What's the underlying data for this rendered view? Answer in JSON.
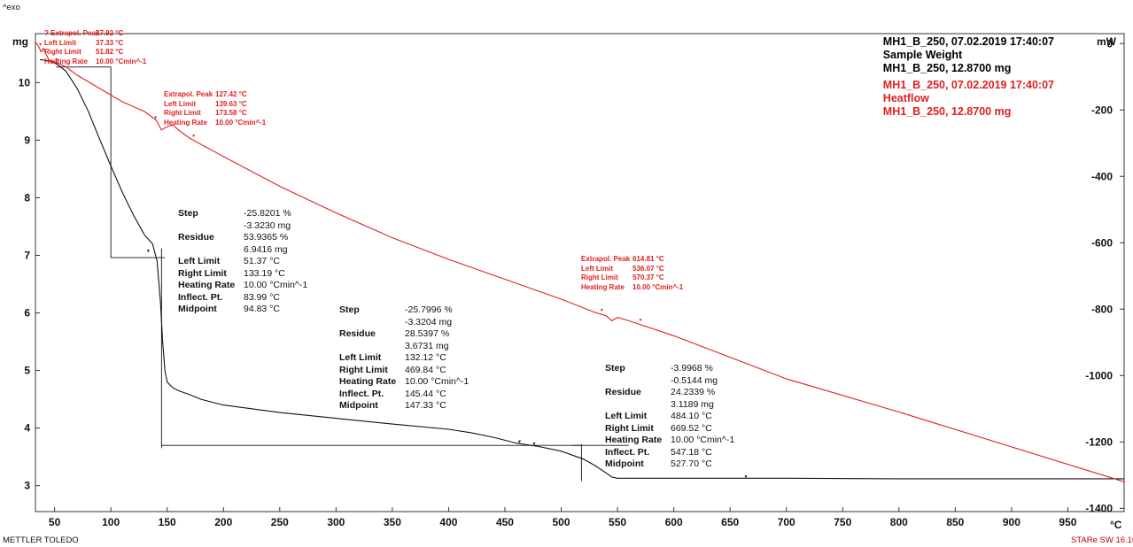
{
  "header": {
    "exo_label": "^exo"
  },
  "footer": {
    "brand": "METTLER TOLEDO",
    "software": "STARe SW 16.10"
  },
  "legend": {
    "black": [
      "MH1_B_250, 07.02.2019 17:40:07",
      "Sample Weight",
      "MH1_B_250, 12.8700 mg"
    ],
    "red": [
      "MH1_B_250, 07.02.2019 17:40:07",
      "Heatflow",
      "MH1_B_250, 12.8700 mg"
    ]
  },
  "colors": {
    "weight": "#111111",
    "heatflow": "#e02020",
    "frame": "#333333"
  },
  "peak_annotations": [
    {
      "rows": [
        [
          "? Extrapol. Peak",
          "37.92 °C"
        ],
        [
          "Left Limit",
          "37.33 °C"
        ],
        [
          "Right Limit",
          "51.82 °C"
        ],
        [
          "Heating Rate",
          "10.00 °Cmin^-1"
        ]
      ]
    },
    {
      "rows": [
        [
          "Extrapol. Peak",
          "127.42 °C"
        ],
        [
          "Left Limit",
          "139.63 °C"
        ],
        [
          "Right Limit",
          "173.58 °C"
        ],
        [
          "Heating Rate",
          "10.00 °Cmin^-1"
        ]
      ]
    },
    {
      "rows": [
        [
          "Extrapol. Peak",
          "614.81 °C"
        ],
        [
          "Left Limit",
          "536.07 °C"
        ],
        [
          "Right Limit",
          "570.37 °C"
        ],
        [
          "Heating Rate",
          "10.00 °Cmin^-1"
        ]
      ]
    }
  ],
  "step_annotations": [
    {
      "rows": [
        [
          "Step",
          "-25.8201 %"
        ],
        [
          "",
          "-3.3230 mg"
        ],
        [
          "Residue",
          "53.9365 %"
        ],
        [
          "",
          "6.9416 mg"
        ],
        [
          "Left Limit",
          "51.37 °C"
        ],
        [
          "Right Limit",
          "133.19 °C"
        ],
        [
          "Heating Rate",
          "10.00 °Cmin^-1"
        ],
        [
          "Inflect. Pt.",
          "83.99 °C"
        ],
        [
          "Midpoint",
          "94.83 °C"
        ]
      ]
    },
    {
      "rows": [
        [
          "Step",
          "-25.7996 %"
        ],
        [
          "",
          "-3.3204 mg"
        ],
        [
          "Residue",
          "28.5397 %"
        ],
        [
          "",
          "3.6731 mg"
        ],
        [
          "Left Limit",
          "132.12 °C"
        ],
        [
          "Right Limit",
          "469.84 °C"
        ],
        [
          "Heating Rate",
          "10.00 °Cmin^-1"
        ],
        [
          "Inflect. Pt.",
          "145.44 °C"
        ],
        [
          "Midpoint",
          "147.33 °C"
        ]
      ]
    },
    {
      "rows": [
        [
          "Step",
          "-3.9968 %"
        ],
        [
          "",
          "-0.5144 mg"
        ],
        [
          "Residue",
          "24.2339 %"
        ],
        [
          "",
          "3.1189 mg"
        ],
        [
          "Left Limit",
          "484.10 °C"
        ],
        [
          "Right Limit",
          "669.52 °C"
        ],
        [
          "Heating Rate",
          "10.00 °Cmin^-1"
        ],
        [
          "Inflect. Pt.",
          "547.18 °C"
        ],
        [
          "Midpoint",
          "527.70 °C"
        ]
      ]
    }
  ],
  "chart_data": {
    "type": "line",
    "x_unit": "°C",
    "y_left_unit": "mg",
    "y_right_unit": "mW",
    "x_ticks": [
      50,
      100,
      150,
      200,
      250,
      300,
      350,
      400,
      450,
      500,
      550,
      600,
      650,
      700,
      750,
      800,
      850,
      900,
      950
    ],
    "y_left_ticks": [
      3,
      4,
      5,
      6,
      7,
      8,
      9,
      10
    ],
    "y_right_ticks": [
      0,
      -200,
      -400,
      -600,
      -800,
      -1000,
      -1200,
      -1400
    ],
    "xlim": [
      33,
      1000
    ],
    "ylim_left": [
      2.55,
      10.85
    ],
    "ylim_right": [
      -1410,
      30
    ],
    "grid": false,
    "series": [
      {
        "name": "Sample Weight",
        "axis": "left",
        "color": "#111111",
        "x": [
          37,
          45,
          52,
          60,
          70,
          80,
          90,
          100,
          110,
          120,
          130,
          137,
          141,
          144,
          146,
          148,
          150,
          155,
          160,
          170,
          180,
          200,
          250,
          300,
          350,
          400,
          420,
          440,
          460,
          480,
          500,
          520,
          530,
          540,
          545,
          550,
          600,
          700,
          800,
          900,
          1000
        ],
        "y": [
          10.4,
          10.38,
          10.32,
          10.2,
          9.9,
          9.5,
          9.02,
          8.55,
          8.1,
          7.7,
          7.35,
          7.2,
          6.9,
          6.2,
          5.5,
          5.0,
          4.8,
          4.7,
          4.65,
          4.58,
          4.5,
          4.4,
          4.27,
          4.17,
          4.07,
          3.98,
          3.92,
          3.84,
          3.74,
          3.68,
          3.6,
          3.46,
          3.35,
          3.22,
          3.15,
          3.13,
          3.13,
          3.13,
          3.12,
          3.12,
          3.12
        ]
      },
      {
        "name": "Heatflow",
        "axis": "right",
        "color": "#e02020",
        "x": [
          33,
          36,
          38,
          40,
          45,
          50,
          60,
          70,
          80,
          90,
          100,
          110,
          120,
          130,
          140,
          145,
          150,
          155,
          160,
          170,
          200,
          250,
          300,
          350,
          400,
          450,
          500,
          530,
          540,
          545,
          550,
          560,
          600,
          700,
          800,
          900,
          1000
        ],
        "y": [
          5,
          -10,
          -25,
          -15,
          -50,
          -55,
          -70,
          -95,
          -115,
          -135,
          -155,
          -175,
          -190,
          -205,
          -230,
          -260,
          -250,
          -245,
          -260,
          -285,
          -340,
          -430,
          -510,
          -585,
          -650,
          -710,
          -770,
          -810,
          -820,
          -835,
          -825,
          -835,
          -880,
          -1010,
          -1110,
          -1215,
          -1320
        ]
      }
    ]
  }
}
